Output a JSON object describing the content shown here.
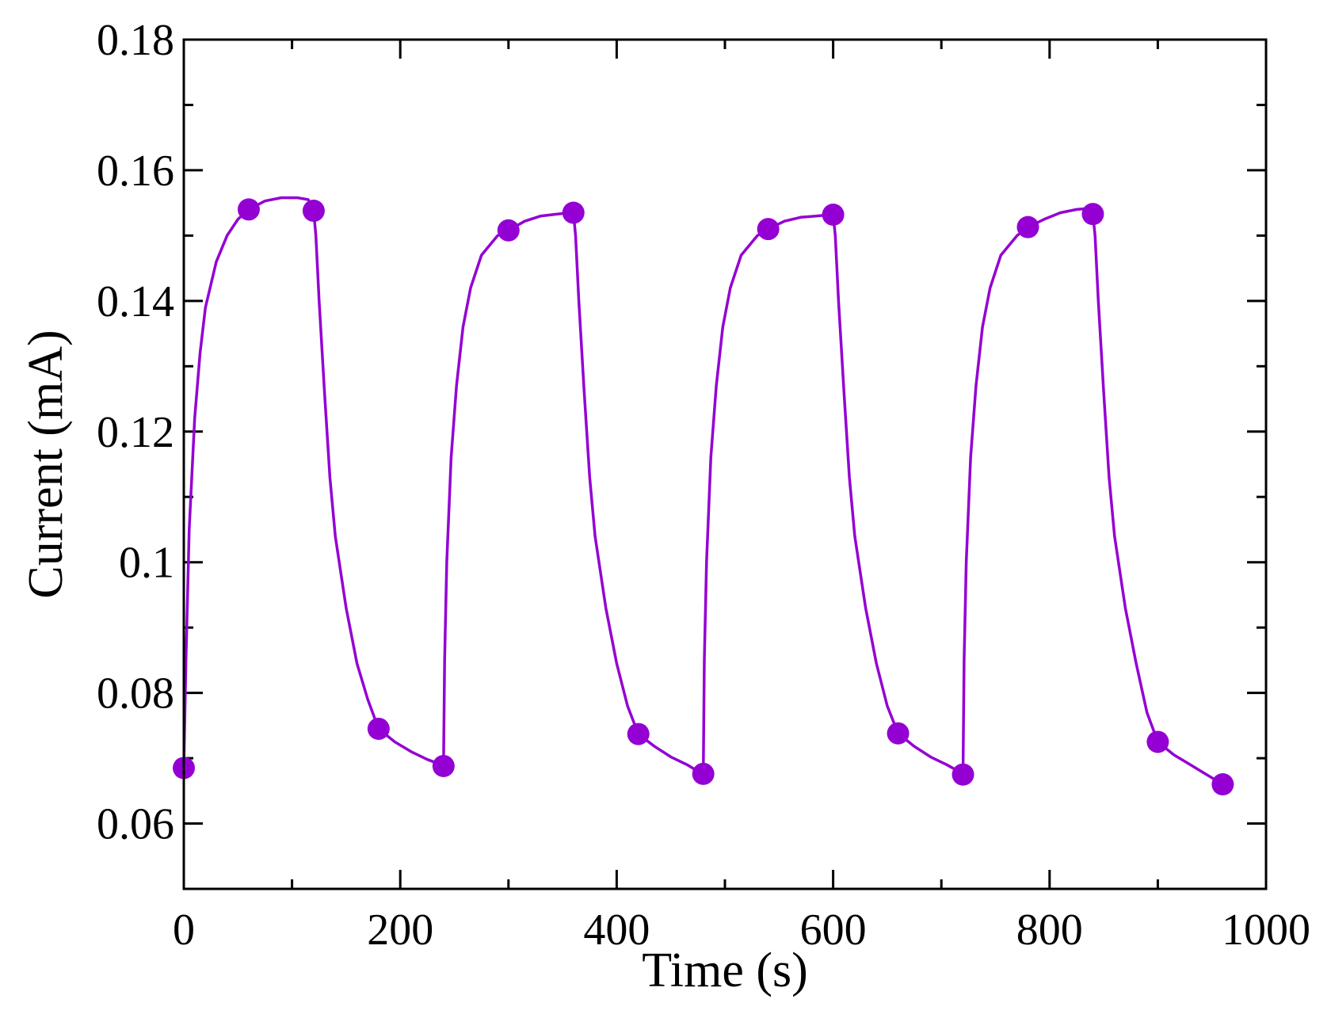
{
  "chart_data": {
    "type": "line",
    "title": "",
    "xlabel": "Time (s)",
    "ylabel": "Current (mA)",
    "xlim": [
      0,
      1000
    ],
    "ylim": [
      0.05,
      0.18
    ],
    "x_major_ticks": [
      0,
      200,
      400,
      600,
      800,
      1000
    ],
    "x_tick_labels": [
      "0",
      "200",
      "400",
      "600",
      "800",
      "1000"
    ],
    "x_minor_ticks": [
      100,
      300,
      500,
      700,
      900
    ],
    "y_major_ticks": [
      0.06,
      0.08,
      0.1,
      0.12,
      0.14,
      0.16,
      0.18
    ],
    "y_tick_labels": [
      "0.06",
      "0.08",
      "0.1",
      "0.12",
      "0.14",
      "0.16",
      "0.18"
    ],
    "y_minor_ticks": [
      0.05,
      0.07,
      0.09,
      0.11,
      0.13,
      0.15,
      0.17
    ],
    "grid": false,
    "legend": "none",
    "series": [
      {
        "name": "photocurrent",
        "color": "#9400d3",
        "marker": "circle",
        "line": [
          [
            0,
            0.0685
          ],
          [
            2,
            0.085
          ],
          [
            5,
            0.105
          ],
          [
            10,
            0.122
          ],
          [
            15,
            0.132
          ],
          [
            20,
            0.139
          ],
          [
            30,
            0.146
          ],
          [
            40,
            0.15
          ],
          [
            50,
            0.1525
          ],
          [
            60,
            0.154
          ],
          [
            75,
            0.1553
          ],
          [
            90,
            0.1558
          ],
          [
            105,
            0.1558
          ],
          [
            115,
            0.1555
          ],
          [
            120,
            0.1538
          ],
          [
            122,
            0.15
          ],
          [
            125,
            0.14
          ],
          [
            130,
            0.126
          ],
          [
            135,
            0.113
          ],
          [
            140,
            0.104
          ],
          [
            150,
            0.093
          ],
          [
            160,
            0.0845
          ],
          [
            170,
            0.079
          ],
          [
            180,
            0.0745
          ],
          [
            195,
            0.0725
          ],
          [
            210,
            0.071
          ],
          [
            225,
            0.0698
          ],
          [
            238,
            0.069
          ],
          [
            240,
            0.0688
          ],
          [
            241,
            0.085
          ],
          [
            243,
            0.1
          ],
          [
            247,
            0.116
          ],
          [
            252,
            0.127
          ],
          [
            258,
            0.136
          ],
          [
            265,
            0.142
          ],
          [
            275,
            0.147
          ],
          [
            290,
            0.15
          ],
          [
            300,
            0.1508
          ],
          [
            315,
            0.1522
          ],
          [
            330,
            0.153
          ],
          [
            345,
            0.1533
          ],
          [
            358,
            0.1535
          ],
          [
            360,
            0.1535
          ],
          [
            362,
            0.15
          ],
          [
            365,
            0.14
          ],
          [
            370,
            0.126
          ],
          [
            375,
            0.113
          ],
          [
            380,
            0.104
          ],
          [
            390,
            0.093
          ],
          [
            400,
            0.0845
          ],
          [
            410,
            0.078
          ],
          [
            420,
            0.0737
          ],
          [
            435,
            0.0718
          ],
          [
            450,
            0.0702
          ],
          [
            465,
            0.069
          ],
          [
            478,
            0.0677
          ],
          [
            480,
            0.0676
          ],
          [
            481,
            0.085
          ],
          [
            483,
            0.1
          ],
          [
            487,
            0.116
          ],
          [
            492,
            0.127
          ],
          [
            498,
            0.136
          ],
          [
            505,
            0.142
          ],
          [
            515,
            0.147
          ],
          [
            530,
            0.15
          ],
          [
            540,
            0.151
          ],
          [
            555,
            0.1522
          ],
          [
            570,
            0.1528
          ],
          [
            585,
            0.153
          ],
          [
            598,
            0.1532
          ],
          [
            600,
            0.1532
          ],
          [
            602,
            0.15
          ],
          [
            605,
            0.14
          ],
          [
            610,
            0.126
          ],
          [
            615,
            0.113
          ],
          [
            620,
            0.104
          ],
          [
            630,
            0.093
          ],
          [
            640,
            0.0845
          ],
          [
            650,
            0.078
          ],
          [
            660,
            0.0738
          ],
          [
            675,
            0.0718
          ],
          [
            690,
            0.0702
          ],
          [
            705,
            0.069
          ],
          [
            718,
            0.0678
          ],
          [
            720,
            0.0675
          ],
          [
            721,
            0.085
          ],
          [
            723,
            0.1
          ],
          [
            727,
            0.116
          ],
          [
            732,
            0.127
          ],
          [
            738,
            0.136
          ],
          [
            745,
            0.142
          ],
          [
            755,
            0.147
          ],
          [
            770,
            0.15
          ],
          [
            780,
            0.1513
          ],
          [
            795,
            0.1525
          ],
          [
            810,
            0.1535
          ],
          [
            825,
            0.154
          ],
          [
            838,
            0.1542
          ],
          [
            840,
            0.1533
          ],
          [
            842,
            0.15
          ],
          [
            845,
            0.14
          ],
          [
            850,
            0.126
          ],
          [
            855,
            0.113
          ],
          [
            860,
            0.104
          ],
          [
            870,
            0.093
          ],
          [
            880,
            0.0845
          ],
          [
            890,
            0.077
          ],
          [
            900,
            0.0725
          ],
          [
            915,
            0.0705
          ],
          [
            930,
            0.069
          ],
          [
            945,
            0.0675
          ],
          [
            960,
            0.066
          ]
        ],
        "markers": [
          [
            0,
            0.0685
          ],
          [
            60,
            0.154
          ],
          [
            120,
            0.1538
          ],
          [
            180,
            0.0745
          ],
          [
            240,
            0.0688
          ],
          [
            300,
            0.1508
          ],
          [
            360,
            0.1535
          ],
          [
            420,
            0.0737
          ],
          [
            480,
            0.0676
          ],
          [
            540,
            0.151
          ],
          [
            600,
            0.1532
          ],
          [
            660,
            0.0738
          ],
          [
            720,
            0.0675
          ],
          [
            780,
            0.1513
          ],
          [
            840,
            0.1533
          ],
          [
            900,
            0.0725
          ],
          [
            960,
            0.066
          ]
        ]
      }
    ]
  }
}
